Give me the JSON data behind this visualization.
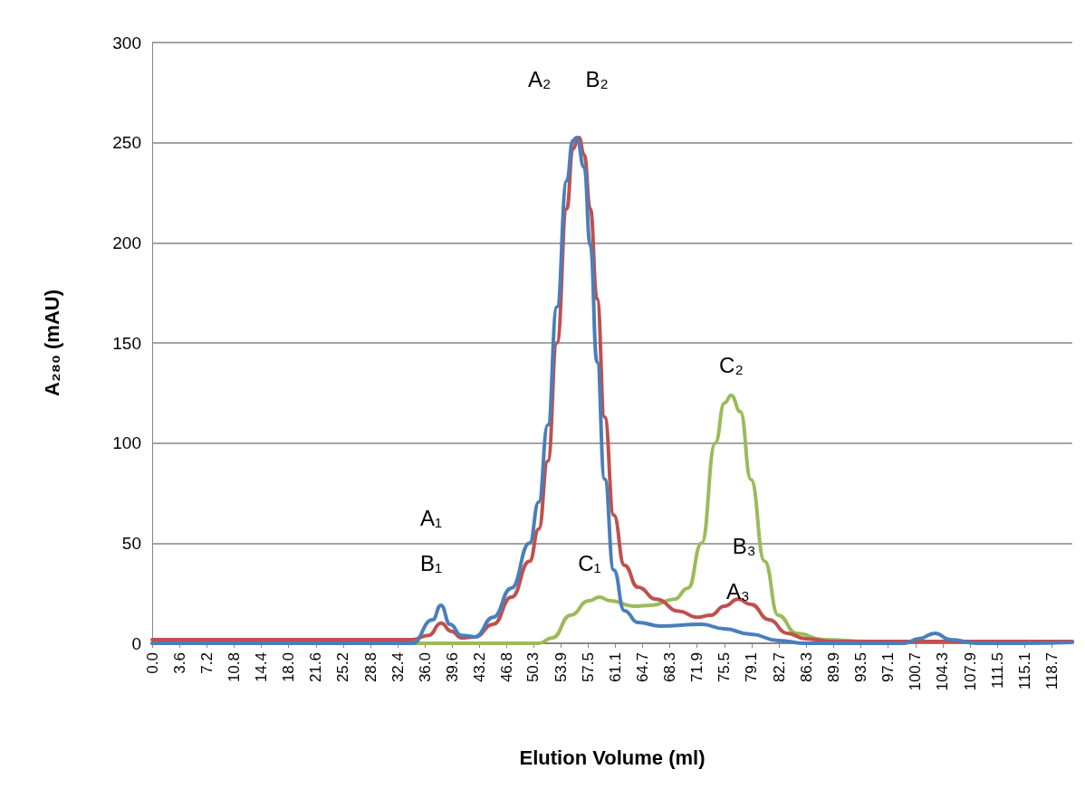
{
  "chart_data": {
    "type": "line",
    "xlabel": "Elution Volume (ml)",
    "ylabel": "A₂₈₀ (mAU)",
    "xlim": [
      0,
      121.4
    ],
    "ylim": [
      0,
      300
    ],
    "yticks": [
      0,
      50,
      100,
      150,
      200,
      250,
      300
    ],
    "xticks": [
      {
        "value": 0,
        "label": "0.0"
      },
      3.6,
      7.2,
      10.8,
      14.4,
      {
        "value": 18,
        "label": "18.0"
      },
      21.6,
      25.2,
      28.8,
      32.4,
      {
        "value": 36,
        "label": "36.0"
      },
      39.6,
      43.2,
      46.8,
      50.3,
      53.9,
      57.5,
      61.1,
      64.7,
      68.3,
      71.9,
      75.5,
      79.1,
      82.7,
      86.3,
      89.9,
      93.5,
      97.1,
      100.7,
      104.3,
      107.9,
      111.5,
      115.1,
      118.7
    ],
    "grid": "y",
    "marker": "none",
    "line_style": "solid",
    "series": [
      {
        "color": "#9bbb59",
        "x": [
          0,
          51,
          52.8,
          55.2,
          57.6,
          59,
          60.5,
          63.5,
          65.9,
          68.9,
          70.7,
          72.5,
          74.3,
          75.5,
          76.4,
          77.6,
          79,
          80.8,
          82.6,
          85,
          88.6,
          94.6,
          121.4
        ],
        "values": [
          0,
          0,
          2.7,
          14,
          21.2,
          23,
          21.2,
          18.5,
          19,
          22,
          27.6,
          50,
          100,
          120,
          123.8,
          115.7,
          81.8,
          41,
          14,
          5,
          1.8,
          0.9,
          0.9
        ]
      },
      {
        "color": "#c0504d",
        "x": [
          0,
          34.3,
          36.5,
          38.1,
          39.5,
          40.8,
          42.6,
          45,
          47.4,
          49.8,
          51,
          52.2,
          53.4,
          54.7,
          55.5,
          56.3,
          57,
          57.8,
          58.7,
          59.7,
          60.9,
          62.3,
          64.1,
          66.5,
          69.5,
          71.9,
          73.7,
          75.5,
          77.3,
          79,
          81.4,
          83.8,
          86.2,
          89.8,
          121.4
        ],
        "values": [
          1.8,
          1.8,
          4,
          10,
          6,
          2.7,
          3.2,
          9.5,
          23,
          41,
          57,
          91,
          150,
          217,
          247,
          252.6,
          244,
          217,
          172,
          113,
          64,
          39,
          28,
          22,
          16,
          13,
          14,
          18.5,
          22,
          19.4,
          11.7,
          5,
          2.3,
          0.9,
          0.9
        ]
      },
      {
        "color": "#4a7ebb",
        "x": [
          0,
          34.3,
          37,
          38.1,
          39.3,
          40.8,
          42.6,
          45,
          47.4,
          49.8,
          51,
          52.2,
          53.4,
          54.7,
          55.5,
          56,
          57,
          57.8,
          58.7,
          59.7,
          60.9,
          62.3,
          64.1,
          67.1,
          72.5,
          75.5,
          79,
          82.6,
          86.2,
          99.3,
          101.1,
          103.3,
          105.3,
          108.9,
          114.9,
          121.4
        ],
        "values": [
          0,
          0,
          11.7,
          19,
          9.5,
          4,
          3.2,
          13,
          27.6,
          50,
          70.5,
          109,
          168,
          231,
          251,
          252.6,
          237.7,
          199,
          140.5,
          82,
          36.6,
          16.3,
          10.4,
          8.6,
          9.5,
          7.2,
          4.5,
          1.4,
          0,
          0,
          2.3,
          5,
          1.8,
          0,
          0,
          0.5
        ]
      }
    ],
    "annotations": [
      "A₁",
      "B₁",
      "A₂",
      "B₂",
      "C₁",
      "C₂",
      "B₃",
      "A₃"
    ]
  }
}
